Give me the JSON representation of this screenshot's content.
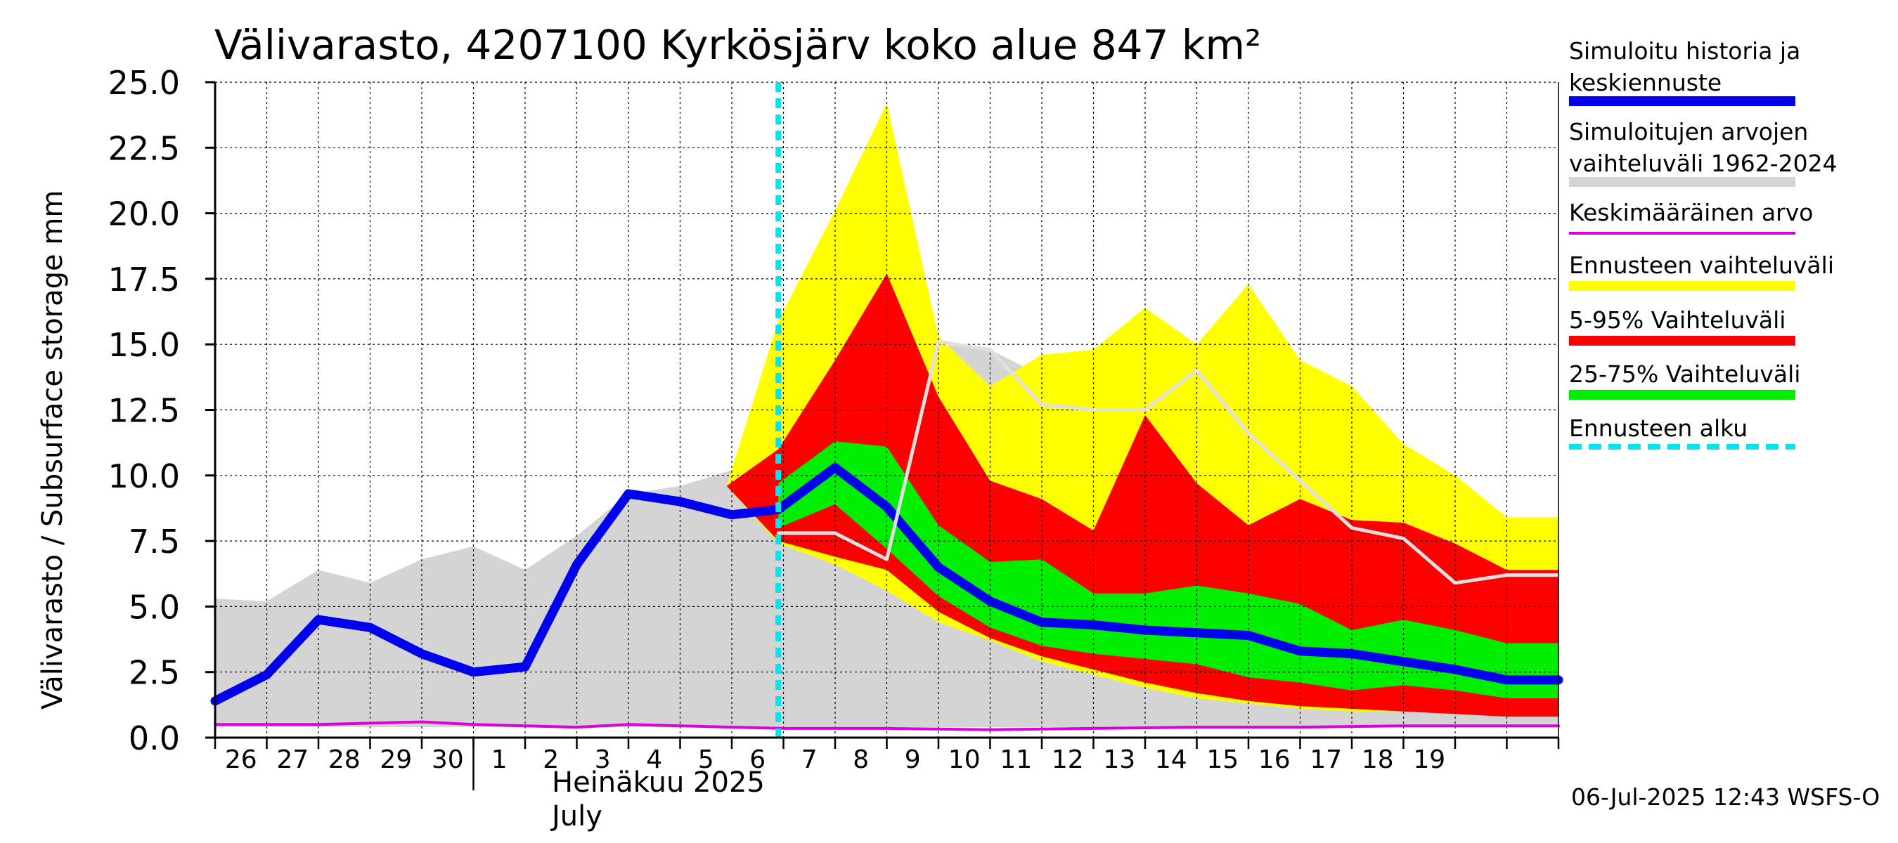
{
  "title": "Välivarasto, 4207100 Kyrkösjärv koko alue 847 km²",
  "ylabel": "Välivarasto / Subsurface storage  mm",
  "month_label": "Heinäkuu  2025\nJuly",
  "footer": "06-Jul-2025 12:43 WSFS-O",
  "legend": [
    {
      "label": "Simuloitu historia ja\nkeskiennuste",
      "color": "#0000ee",
      "style": "solid"
    },
    {
      "label": "Simuloitujen arvojen\nvaihteluväli 1962-2024",
      "color": "#d4d4d4",
      "style": "solid"
    },
    {
      "label": "Keskimääräinen arvo",
      "color": "#dd00dd",
      "style": "thin"
    },
    {
      "label": "Ennusteen vaihteluväli",
      "color": "#ffff00",
      "style": "solid"
    },
    {
      "label": "5-95% Vaihteluväli",
      "color": "#ff0000",
      "style": "solid"
    },
    {
      "label": "25-75% Vaihteluväli",
      "color": "#00ee00",
      "style": "solid"
    },
    {
      "label": "Ennusteen alku",
      "color": "#00e5ee",
      "style": "dashed"
    }
  ],
  "chart_data": {
    "type": "area",
    "title": "Välivarasto, 4207100 Kyrkösjärv koko alue 847 km²",
    "ylabel": "Välivarasto / Subsurface storage  mm",
    "ylim": [
      0,
      25
    ],
    "yticks": [
      "0.0",
      "2.5",
      "5.0",
      "7.5",
      "10.0",
      "12.5",
      "15.0",
      "17.5",
      "20.0",
      "22.5",
      "25.0"
    ],
    "xlim": [
      0,
      26
    ],
    "x_tick_labels": [
      "26",
      "27",
      "28",
      "29",
      "30",
      "1",
      "2",
      "3",
      "4",
      "5",
      "6",
      "7",
      "8",
      "9",
      "10",
      "11",
      "12",
      "13",
      "14",
      "15",
      "16",
      "17",
      "18",
      "19"
    ],
    "grid": true,
    "forecast_start_x": 10.9,
    "history_range": {
      "x": [
        0,
        1,
        2,
        3,
        4,
        5,
        6,
        7,
        8,
        9,
        10,
        10.9,
        12,
        13,
        14,
        15,
        16,
        17,
        18,
        19,
        20,
        21,
        22,
        23,
        24,
        25,
        26
      ],
      "upper": [
        5.3,
        5.2,
        6.4,
        5.9,
        6.8,
        7.3,
        6.4,
        7.7,
        9.3,
        9.6,
        10.2,
        7.8,
        6.8,
        7.0,
        15.0,
        14.8,
        13.8,
        12.7,
        12.5,
        13.8,
        11.6,
        9.8,
        8.0,
        7.6,
        5.9,
        6.2,
        6.2
      ],
      "lower": [
        0.4,
        0.4,
        0.4,
        0.4,
        0.4,
        0.4,
        0.4,
        0.4,
        0.4,
        0.4,
        0.4,
        0.4,
        0.4,
        0.4,
        0.4,
        0.4,
        0.4,
        0.4,
        0.4,
        0.4,
        0.4,
        0.4,
        0.4,
        0.4,
        0.4,
        0.4,
        0.4
      ]
    },
    "bands": [
      {
        "name": "Ennusteen vaihteluväli",
        "color": "#ffff00",
        "x": [
          9.9,
          10.9,
          12,
          13,
          14,
          15,
          16,
          17,
          18,
          19,
          20,
          21,
          22,
          23,
          24,
          25,
          26
        ],
        "upper": [
          9.6,
          15.9,
          20.1,
          24.2,
          15.3,
          13.4,
          14.6,
          14.8,
          16.4,
          15.0,
          17.3,
          14.4,
          13.4,
          11.2,
          10.0,
          8.4,
          8.4
        ],
        "lower": [
          9.6,
          7.4,
          6.6,
          5.6,
          4.4,
          3.7,
          2.9,
          2.4,
          1.9,
          1.5,
          1.3,
          1.1,
          1.0,
          1.0,
          1.0,
          1.1,
          1.1
        ]
      },
      {
        "name": "5-95% Vaihteluväli",
        "color": "#ff0000",
        "x": [
          9.9,
          10.9,
          12,
          13,
          14,
          15,
          16,
          17,
          18,
          19,
          20,
          21,
          22,
          23,
          24,
          25,
          26
        ],
        "upper": [
          9.6,
          11.0,
          14.4,
          17.7,
          13.0,
          9.8,
          9.1,
          7.9,
          12.3,
          9.7,
          8.1,
          9.1,
          8.3,
          8.2,
          7.4,
          6.4,
          6.4
        ],
        "lower": [
          9.6,
          7.5,
          6.9,
          6.4,
          4.8,
          3.8,
          3.1,
          2.6,
          2.1,
          1.7,
          1.4,
          1.2,
          1.1,
          1.0,
          0.9,
          0.8,
          0.8
        ]
      },
      {
        "name": "25-75% Vaihteluväli",
        "color": "#00ee00",
        "x": [
          10.9,
          12,
          13,
          14,
          15,
          16,
          17,
          18,
          19,
          20,
          21,
          22,
          23,
          24,
          25,
          26
        ],
        "upper": [
          9.7,
          11.3,
          11.1,
          8.1,
          6.7,
          6.8,
          5.5,
          5.5,
          5.8,
          5.5,
          5.1,
          4.1,
          4.5,
          4.1,
          3.6,
          3.6
        ],
        "lower": [
          8.0,
          8.9,
          7.2,
          5.4,
          4.2,
          3.5,
          3.2,
          3.0,
          2.8,
          2.3,
          2.1,
          1.8,
          2.0,
          1.8,
          1.5,
          1.5
        ]
      }
    ],
    "series": [
      {
        "name": "Simuloitu historia ja keskiennuste",
        "color": "#0000ee",
        "x": [
          0,
          1,
          2,
          3,
          4,
          5,
          6,
          7,
          8,
          9,
          10,
          10.9,
          12,
          13,
          14,
          15,
          16,
          17,
          18,
          19,
          20,
          21,
          22,
          23,
          24,
          25,
          26
        ],
        "y": [
          1.4,
          2.4,
          4.5,
          4.2,
          3.2,
          2.5,
          2.7,
          6.6,
          9.3,
          9.0,
          8.5,
          8.7,
          10.3,
          8.8,
          6.5,
          5.2,
          4.4,
          4.3,
          4.1,
          4.0,
          3.9,
          3.3,
          3.2,
          2.9,
          2.6,
          2.2,
          2.2
        ]
      },
      {
        "name": "Keskimääräinen arvo",
        "color": "#dd00dd",
        "x": [
          0,
          2,
          4,
          5,
          7,
          8,
          10,
          11,
          13,
          15,
          17,
          19,
          21,
          23,
          25,
          26
        ],
        "y": [
          0.5,
          0.5,
          0.6,
          0.5,
          0.4,
          0.5,
          0.4,
          0.35,
          0.35,
          0.3,
          0.35,
          0.4,
          0.4,
          0.45,
          0.45,
          0.45
        ]
      },
      {
        "name": "",
        "color": "#e0e0e0",
        "x": [
          10.9,
          12,
          13,
          14,
          15,
          16,
          17,
          18,
          19,
          20,
          21,
          22,
          23,
          24,
          25,
          26
        ],
        "y": [
          7.8,
          7.8,
          6.8,
          15.1,
          14.8,
          12.7,
          12.5,
          12.5,
          14.0,
          11.6,
          9.8,
          8.0,
          7.6,
          5.9,
          6.2,
          6.2
        ]
      }
    ]
  }
}
